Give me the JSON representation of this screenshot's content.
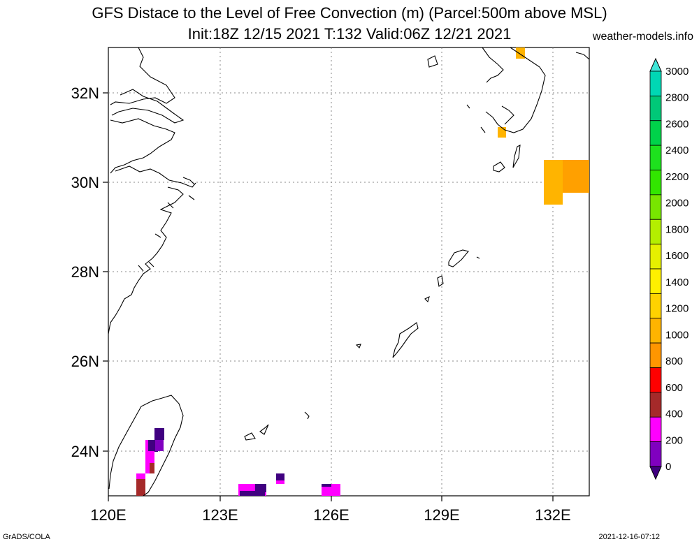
{
  "title_line1": "GFS Distace to the Level of Free Convection (m) (Parcel:500m above MSL)",
  "title_line2": "Init:18Z 12/15 2021 T:132 Valid:06Z 12/21 2021",
  "site": "weather-models.info",
  "footer_left": "GrADS/COLA",
  "footer_right": "2021-12-16-07:12",
  "lat_labels": [
    "32N",
    "30N",
    "28N",
    "26N",
    "24N"
  ],
  "lon_labels": [
    "120E",
    "123E",
    "126E",
    "129E",
    "132E"
  ],
  "colorbar": {
    "labels": [
      "3000",
      "2800",
      "2600",
      "2400",
      "2200",
      "2000",
      "1800",
      "1600",
      "1400",
      "1200",
      "1000",
      "800",
      "600",
      "400",
      "200",
      "0"
    ],
    "colors_top_to_bottom": [
      "#40e6d8",
      "#00d7b4",
      "#00c878",
      "#00d24a",
      "#1ee11e",
      "#32e600",
      "#78e600",
      "#b4ee00",
      "#e6f000",
      "#fff000",
      "#ffd200",
      "#ffb400",
      "#ff9600",
      "#ff0000",
      "#a52a2a",
      "#ff00ff",
      "#8000c0",
      "#400080"
    ]
  }
}
